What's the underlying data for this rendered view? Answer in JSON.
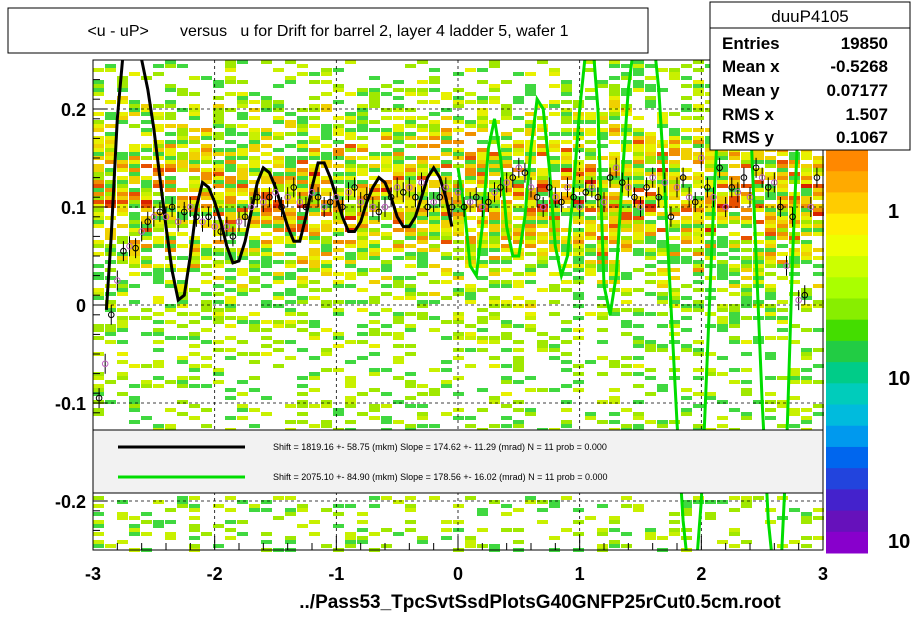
{
  "title": "<u - uP>       versus   u for Drift for barrel 2, layer 4 ladder 5, wafer 1",
  "footer": "../Pass53_TpcSvtSsdPlotsG40GNFP25rCut0.5cm.root",
  "stats": {
    "name": "duuP4105",
    "rows": [
      {
        "label": "Entries",
        "value": "19850"
      },
      {
        "label": "Mean x",
        "value": "-0.5268"
      },
      {
        "label": "Mean y",
        "value": "0.07177"
      },
      {
        "label": "RMS x",
        "value": "1.507"
      },
      {
        "label": "RMS y",
        "value": "0.1067"
      }
    ]
  },
  "legend": [
    {
      "text": "Shift =  1819.16 +- 58.75 (mkm) Slope =   174.62 +- 11.29 (mrad)  N = 11 prob = 0.000",
      "color": "#000000"
    },
    {
      "text": "Shift =  2075.10 +- 84.90 (mkm) Slope =   178.56 +- 16.02 (mrad)  N = 11 prob = 0.000",
      "color": "#00dd00"
    }
  ],
  "chart_data": {
    "type": "heatmap",
    "xlim": [
      -3,
      3
    ],
    "ylim": [
      -0.25,
      0.25
    ],
    "x_ticks": [
      "-3",
      "-2",
      "-1",
      "0",
      "1",
      "2",
      "3"
    ],
    "y_ticks": [
      "-0.2",
      "-0.1",
      "0",
      "0.1",
      "0.2"
    ],
    "grid": true,
    "colorbar_ticks": [
      "1",
      "10",
      "10"
    ],
    "profile_points": [
      {
        "x": -2.95,
        "y": -0.095
      },
      {
        "x": -2.9,
        "y": -0.06
      },
      {
        "x": -2.85,
        "y": -0.01
      },
      {
        "x": -2.8,
        "y": 0.025
      },
      {
        "x": -2.75,
        "y": 0.055
      },
      {
        "x": -2.7,
        "y": 0.06
      },
      {
        "x": -2.65,
        "y": 0.058
      },
      {
        "x": -2.6,
        "y": 0.075
      },
      {
        "x": -2.55,
        "y": 0.085
      },
      {
        "x": -2.5,
        "y": 0.09
      },
      {
        "x": -2.45,
        "y": 0.095
      },
      {
        "x": -2.4,
        "y": 0.09
      },
      {
        "x": -2.35,
        "y": 0.1
      },
      {
        "x": -2.3,
        "y": 0.085
      },
      {
        "x": -2.25,
        "y": 0.095
      },
      {
        "x": -2.2,
        "y": 0.1
      },
      {
        "x": -2.15,
        "y": 0.09
      },
      {
        "x": -2.1,
        "y": 0.085
      },
      {
        "x": -2.05,
        "y": 0.09
      },
      {
        "x": -2.0,
        "y": 0.08
      },
      {
        "x": -1.95,
        "y": 0.075
      },
      {
        "x": -1.9,
        "y": 0.08
      },
      {
        "x": -1.85,
        "y": 0.07
      },
      {
        "x": -1.8,
        "y": 0.085
      },
      {
        "x": -1.75,
        "y": 0.09
      },
      {
        "x": -1.7,
        "y": 0.1
      },
      {
        "x": -1.65,
        "y": 0.11
      },
      {
        "x": -1.6,
        "y": 0.105
      },
      {
        "x": -1.55,
        "y": 0.11
      },
      {
        "x": -1.5,
        "y": 0.115
      },
      {
        "x": -1.45,
        "y": 0.1
      },
      {
        "x": -1.4,
        "y": 0.11
      },
      {
        "x": -1.35,
        "y": 0.12
      },
      {
        "x": -1.3,
        "y": 0.105
      },
      {
        "x": -1.25,
        "y": 0.1
      },
      {
        "x": -1.2,
        "y": 0.115
      },
      {
        "x": -1.15,
        "y": 0.11
      },
      {
        "x": -1.1,
        "y": 0.1
      },
      {
        "x": -1.05,
        "y": 0.105
      },
      {
        "x": -1.0,
        "y": 0.11
      },
      {
        "x": -0.95,
        "y": 0.1
      },
      {
        "x": -0.9,
        "y": 0.115
      },
      {
        "x": -0.85,
        "y": 0.12
      },
      {
        "x": -0.8,
        "y": 0.105
      },
      {
        "x": -0.75,
        "y": 0.11
      },
      {
        "x": -0.7,
        "y": 0.1
      },
      {
        "x": -0.65,
        "y": 0.095
      },
      {
        "x": -0.6,
        "y": 0.1
      },
      {
        "x": -0.55,
        "y": 0.11
      },
      {
        "x": -0.5,
        "y": 0.12
      },
      {
        "x": -0.45,
        "y": 0.115
      },
      {
        "x": -0.4,
        "y": 0.12
      },
      {
        "x": -0.35,
        "y": 0.11
      },
      {
        "x": -0.3,
        "y": 0.125
      },
      {
        "x": -0.25,
        "y": 0.1
      },
      {
        "x": -0.2,
        "y": 0.105
      },
      {
        "x": -0.15,
        "y": 0.11
      },
      {
        "x": -0.1,
        "y": 0.12
      },
      {
        "x": -0.05,
        "y": 0.1
      },
      {
        "x": 0.0,
        "y": 0.115
      },
      {
        "x": 0.05,
        "y": 0.1
      },
      {
        "x": 0.1,
        "y": 0.105
      },
      {
        "x": 0.15,
        "y": 0.11
      },
      {
        "x": 0.2,
        "y": 0.1
      },
      {
        "x": 0.25,
        "y": 0.105
      },
      {
        "x": 0.3,
        "y": 0.115
      },
      {
        "x": 0.35,
        "y": 0.12
      },
      {
        "x": 0.4,
        "y": 0.125
      },
      {
        "x": 0.45,
        "y": 0.13
      },
      {
        "x": 0.5,
        "y": 0.14
      },
      {
        "x": 0.55,
        "y": 0.135
      },
      {
        "x": 0.6,
        "y": 0.12
      },
      {
        "x": 0.65,
        "y": 0.11
      },
      {
        "x": 0.7,
        "y": 0.1
      },
      {
        "x": 0.75,
        "y": 0.12
      },
      {
        "x": 0.8,
        "y": 0.11
      },
      {
        "x": 0.85,
        "y": 0.105
      },
      {
        "x": 0.9,
        "y": 0.12
      },
      {
        "x": 0.95,
        "y": 0.11
      },
      {
        "x": 1.0,
        "y": 0.1
      },
      {
        "x": 1.05,
        "y": 0.115
      },
      {
        "x": 1.1,
        "y": 0.12
      },
      {
        "x": 1.15,
        "y": 0.11
      },
      {
        "x": 1.2,
        "y": 0.105
      },
      {
        "x": 1.25,
        "y": 0.13
      },
      {
        "x": 1.3,
        "y": 0.14
      },
      {
        "x": 1.35,
        "y": 0.125
      },
      {
        "x": 1.4,
        "y": 0.12
      },
      {
        "x": 1.45,
        "y": 0.11
      },
      {
        "x": 1.5,
        "y": 0.1
      },
      {
        "x": 1.55,
        "y": 0.12
      },
      {
        "x": 1.6,
        "y": 0.13
      },
      {
        "x": 1.65,
        "y": 0.11
      },
      {
        "x": 1.7,
        "y": 0.125
      },
      {
        "x": 1.75,
        "y": 0.09
      },
      {
        "x": 1.8,
        "y": 0.12
      },
      {
        "x": 1.85,
        "y": 0.13
      },
      {
        "x": 1.9,
        "y": 0.11
      },
      {
        "x": 1.95,
        "y": 0.105
      },
      {
        "x": 2.0,
        "y": 0.15
      },
      {
        "x": 2.05,
        "y": 0.12
      },
      {
        "x": 2.1,
        "y": 0.11
      },
      {
        "x": 2.15,
        "y": 0.14
      },
      {
        "x": 2.2,
        "y": 0.1
      },
      {
        "x": 2.25,
        "y": 0.12
      },
      {
        "x": 2.3,
        "y": 0.115
      },
      {
        "x": 2.35,
        "y": 0.13
      },
      {
        "x": 2.4,
        "y": 0.11
      },
      {
        "x": 2.45,
        "y": 0.14
      },
      {
        "x": 2.5,
        "y": 0.13
      },
      {
        "x": 2.55,
        "y": 0.12
      },
      {
        "x": 2.6,
        "y": 0.125
      },
      {
        "x": 2.65,
        "y": 0.1
      },
      {
        "x": 2.7,
        "y": 0.04
      },
      {
        "x": 2.75,
        "y": 0.09
      },
      {
        "x": 2.8,
        "y": 0.005
      },
      {
        "x": 2.85,
        "y": 0.01
      },
      {
        "x": 2.9,
        "y": 0.1
      },
      {
        "x": 2.95,
        "y": 0.13
      }
    ],
    "black_curve": {
      "x": [
        -2.89,
        -2.85,
        -2.8,
        -2.75,
        -2.7,
        -2.65,
        -2.6,
        -2.55,
        -2.5,
        -2.45,
        -2.4,
        -2.35,
        -2.3,
        -2.25,
        -2.2,
        -2.15,
        -2.1,
        -2.05,
        -2.0,
        -1.95,
        -1.9,
        -1.85,
        -1.8,
        -1.75,
        -1.7,
        -1.65,
        -1.6,
        -1.55,
        -1.5,
        -1.45,
        -1.4,
        -1.35,
        -1.3,
        -1.25,
        -1.2,
        -1.15,
        -1.1,
        -1.05,
        -1.0,
        -0.95,
        -0.9,
        -0.85,
        -0.8,
        -0.75,
        -0.7,
        -0.65,
        -0.6,
        -0.55,
        -0.5,
        -0.45,
        -0.4,
        -0.35,
        -0.3,
        -0.25,
        -0.2,
        -0.15,
        -0.1,
        -0.05
      ],
      "y": [
        -0.005,
        0.07,
        0.19,
        0.26,
        0.28,
        0.26,
        0.25,
        0.22,
        0.18,
        0.13,
        0.08,
        0.035,
        0.005,
        0.01,
        0.05,
        0.1,
        0.125,
        0.12,
        0.105,
        0.085,
        0.06,
        0.043,
        0.045,
        0.065,
        0.095,
        0.125,
        0.14,
        0.135,
        0.12,
        0.1,
        0.08,
        0.065,
        0.065,
        0.09,
        0.12,
        0.145,
        0.145,
        0.13,
        0.11,
        0.09,
        0.075,
        0.075,
        0.085,
        0.105,
        0.12,
        0.13,
        0.125,
        0.11,
        0.09,
        0.08,
        0.08,
        0.09,
        0.11,
        0.13,
        0.14,
        0.13,
        0.11,
        0.08
      ]
    },
    "green_curve": {
      "x": [
        0.0,
        0.05,
        0.1,
        0.15,
        0.2,
        0.25,
        0.3,
        0.35,
        0.4,
        0.45,
        0.5,
        0.55,
        0.6,
        0.65,
        0.7,
        0.75,
        0.8,
        0.85,
        0.9,
        0.95,
        1.0,
        1.05,
        1.1,
        1.15,
        1.2,
        1.25,
        1.3,
        1.35,
        1.4,
        1.45,
        1.5,
        1.55,
        1.6,
        1.65,
        1.7,
        1.75,
        1.8,
        1.85,
        1.9,
        1.95,
        2.0,
        2.05,
        2.1,
        2.15,
        2.2,
        2.25,
        2.3,
        2.35,
        2.4,
        2.45,
        2.5,
        2.55,
        2.6,
        2.65,
        2.7,
        2.75,
        2.8,
        2.85,
        2.9,
        2.95
      ],
      "y": [
        0.14,
        0.1,
        0.04,
        0.03,
        0.08,
        0.16,
        0.19,
        0.15,
        0.08,
        0.05,
        0.05,
        0.09,
        0.16,
        0.21,
        0.2,
        0.14,
        0.06,
        0.03,
        0.05,
        0.12,
        0.2,
        0.26,
        0.28,
        0.2,
        0.02,
        -0.01,
        0.03,
        0.13,
        0.22,
        0.27,
        0.3,
        0.3,
        0.28,
        0.22,
        0.12,
        0.0,
        -0.12,
        -0.22,
        -0.28,
        -0.28,
        -0.2,
        -0.05,
        0.1,
        0.22,
        0.28,
        0.3,
        0.3,
        0.28,
        0.2,
        0.05,
        -0.1,
        -0.22,
        -0.28,
        -0.28,
        -0.15,
        0.05,
        0.2,
        0.28,
        0.3,
        0.3
      ]
    }
  }
}
